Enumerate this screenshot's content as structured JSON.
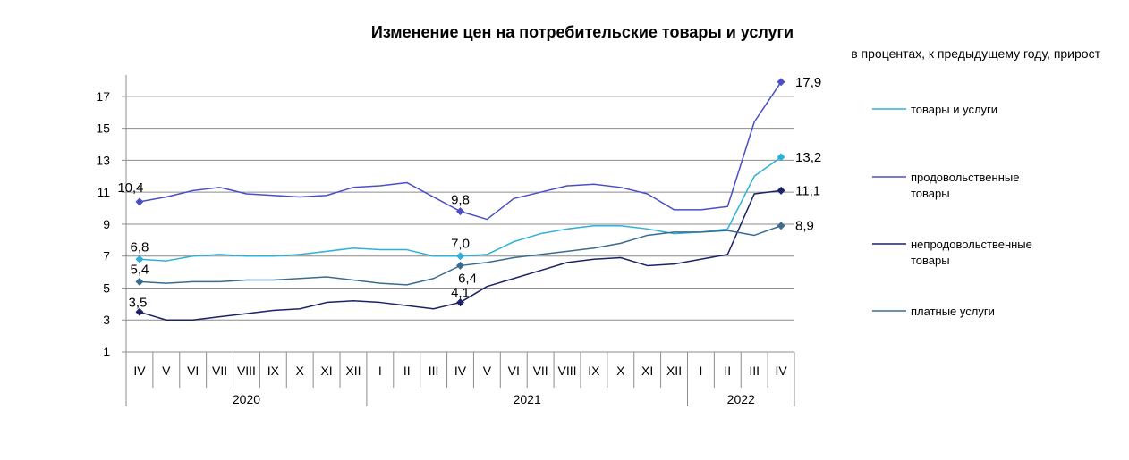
{
  "chart_data": {
    "type": "line",
    "title": "Изменение цен на потребительские товары и услуги",
    "subtitle": "в процентах, к предыдущему году, прирост",
    "yticks": [
      1,
      3,
      5,
      7,
      9,
      11,
      13,
      15,
      17
    ],
    "ylim": [
      1,
      18
    ],
    "categories": [
      "IV",
      "V",
      "VI",
      "VII",
      "VIII",
      "IX",
      "X",
      "XI",
      "XII",
      "I",
      "II",
      "III",
      "IV",
      "V",
      "VI",
      "VII",
      "VIII",
      "IX",
      "X",
      "XI",
      "XII",
      "I",
      "II",
      "III",
      "IV"
    ],
    "year_groups": [
      {
        "label": "2020",
        "start": 0,
        "end": 8
      },
      {
        "label": "2021",
        "start": 9,
        "end": 20
      },
      {
        "label": "2022",
        "start": 21,
        "end": 24
      }
    ],
    "grid": "horizontal",
    "legend_position": "right",
    "series": [
      {
        "name": "товары и услуги",
        "color": "#2fb0d9",
        "values": [
          6.8,
          6.7,
          7.0,
          7.1,
          7.0,
          7.0,
          7.1,
          7.3,
          7.5,
          7.4,
          7.4,
          7.0,
          7.0,
          7.1,
          7.9,
          8.4,
          8.7,
          8.9,
          8.9,
          8.7,
          8.4,
          8.5,
          8.7,
          12.0,
          13.2
        ],
        "labeled_points": [
          {
            "index": 0,
            "text": "6,8"
          },
          {
            "index": 12,
            "text": "7,0"
          },
          {
            "index": 24,
            "text": "13,2"
          }
        ]
      },
      {
        "name": "продовольственные товары",
        "color": "#4a4fc4",
        "values": [
          10.4,
          10.7,
          11.1,
          11.3,
          10.9,
          10.8,
          10.7,
          10.8,
          11.3,
          11.4,
          11.6,
          10.7,
          9.8,
          9.3,
          10.6,
          11.0,
          11.4,
          11.5,
          11.3,
          10.9,
          9.9,
          9.9,
          10.1,
          15.4,
          17.9
        ],
        "labeled_points": [
          {
            "index": 0,
            "text": "10,4"
          },
          {
            "index": 12,
            "text": "9,8"
          },
          {
            "index": 24,
            "text": "17,9"
          }
        ]
      },
      {
        "name": "непродовольственные товары",
        "color": "#1b2266",
        "values": [
          3.5,
          3.0,
          3.0,
          3.2,
          3.4,
          3.6,
          3.7,
          4.1,
          4.2,
          4.1,
          3.9,
          3.7,
          4.1,
          5.1,
          5.6,
          6.1,
          6.6,
          6.8,
          6.9,
          6.4,
          6.5,
          6.8,
          7.1,
          10.9,
          11.1
        ],
        "labeled_points": [
          {
            "index": 0,
            "text": "3,5"
          },
          {
            "index": 12,
            "text": "4,1"
          },
          {
            "index": 24,
            "text": "11,1"
          }
        ]
      },
      {
        "name": "платные услуги",
        "color": "#3a6c8f",
        "values": [
          5.4,
          5.3,
          5.4,
          5.4,
          5.5,
          5.5,
          5.6,
          5.7,
          5.5,
          5.3,
          5.2,
          5.6,
          6.4,
          6.6,
          6.9,
          7.1,
          7.3,
          7.5,
          7.8,
          8.3,
          8.5,
          8.5,
          8.6,
          8.3,
          8.9
        ],
        "labeled_points": [
          {
            "index": 0,
            "text": "5,4"
          },
          {
            "index": 12,
            "text": "6,4"
          },
          {
            "index": 24,
            "text": "8,9"
          }
        ]
      }
    ]
  },
  "legend": {
    "items": [
      {
        "line1": "товары и услуги",
        "line2": ""
      },
      {
        "line1": "продовольственные",
        "line2": "товары"
      },
      {
        "line1": "непродовольственные",
        "line2": "товары"
      },
      {
        "line1": "платные услуги",
        "line2": ""
      }
    ]
  }
}
